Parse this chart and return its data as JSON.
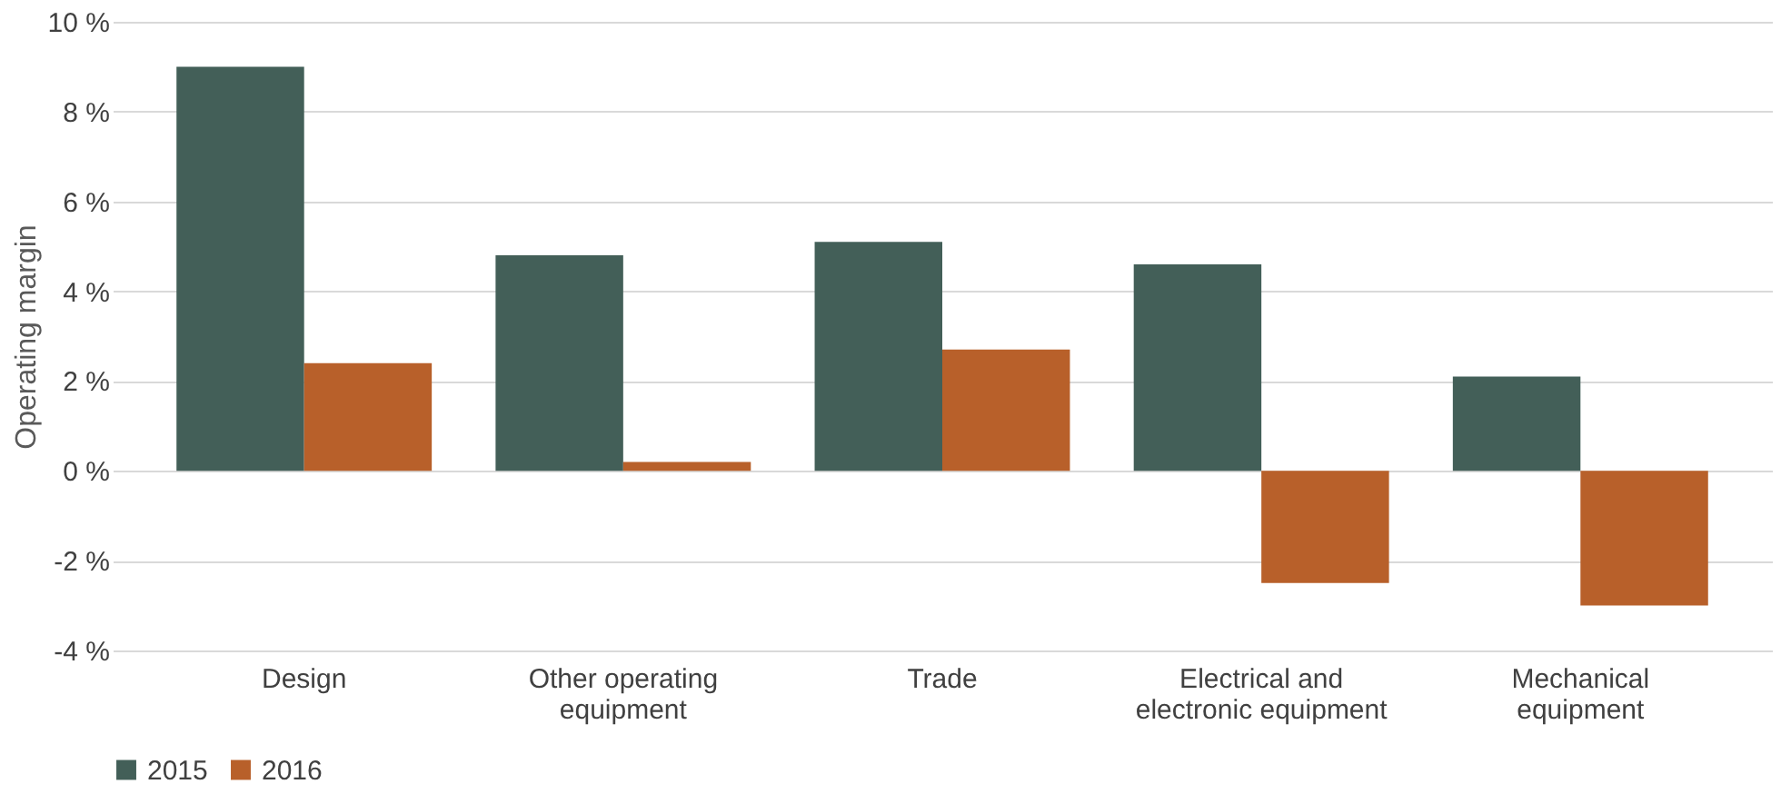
{
  "chart_data": {
    "type": "bar",
    "ylabel": "Operating margin",
    "categories": [
      "Design",
      "Other operating\nequipment",
      "Trade",
      "Electrical and\nelectronic equipment",
      "Mechanical\nequipment"
    ],
    "series": [
      {
        "name": "2015",
        "color": "#435f58",
        "values": [
          9.0,
          4.8,
          5.1,
          4.6,
          2.1
        ]
      },
      {
        "name": "2016",
        "color": "#b8602a",
        "values": [
          2.4,
          0.2,
          2.7,
          -2.5,
          -3.0
        ]
      }
    ],
    "ylim": [
      -4,
      10
    ],
    "yticks": [
      {
        "value": -4,
        "label": "-4 %"
      },
      {
        "value": -2,
        "label": "-2 %"
      },
      {
        "value": 0,
        "label": "0 %"
      },
      {
        "value": 2,
        "label": "2 %"
      },
      {
        "value": 4,
        "label": "4 %"
      },
      {
        "value": 6,
        "label": "6 %"
      },
      {
        "value": 8,
        "label": "8 %"
      },
      {
        "value": 10,
        "label": "10 %"
      }
    ],
    "grid": "y",
    "legend": "bottom"
  }
}
